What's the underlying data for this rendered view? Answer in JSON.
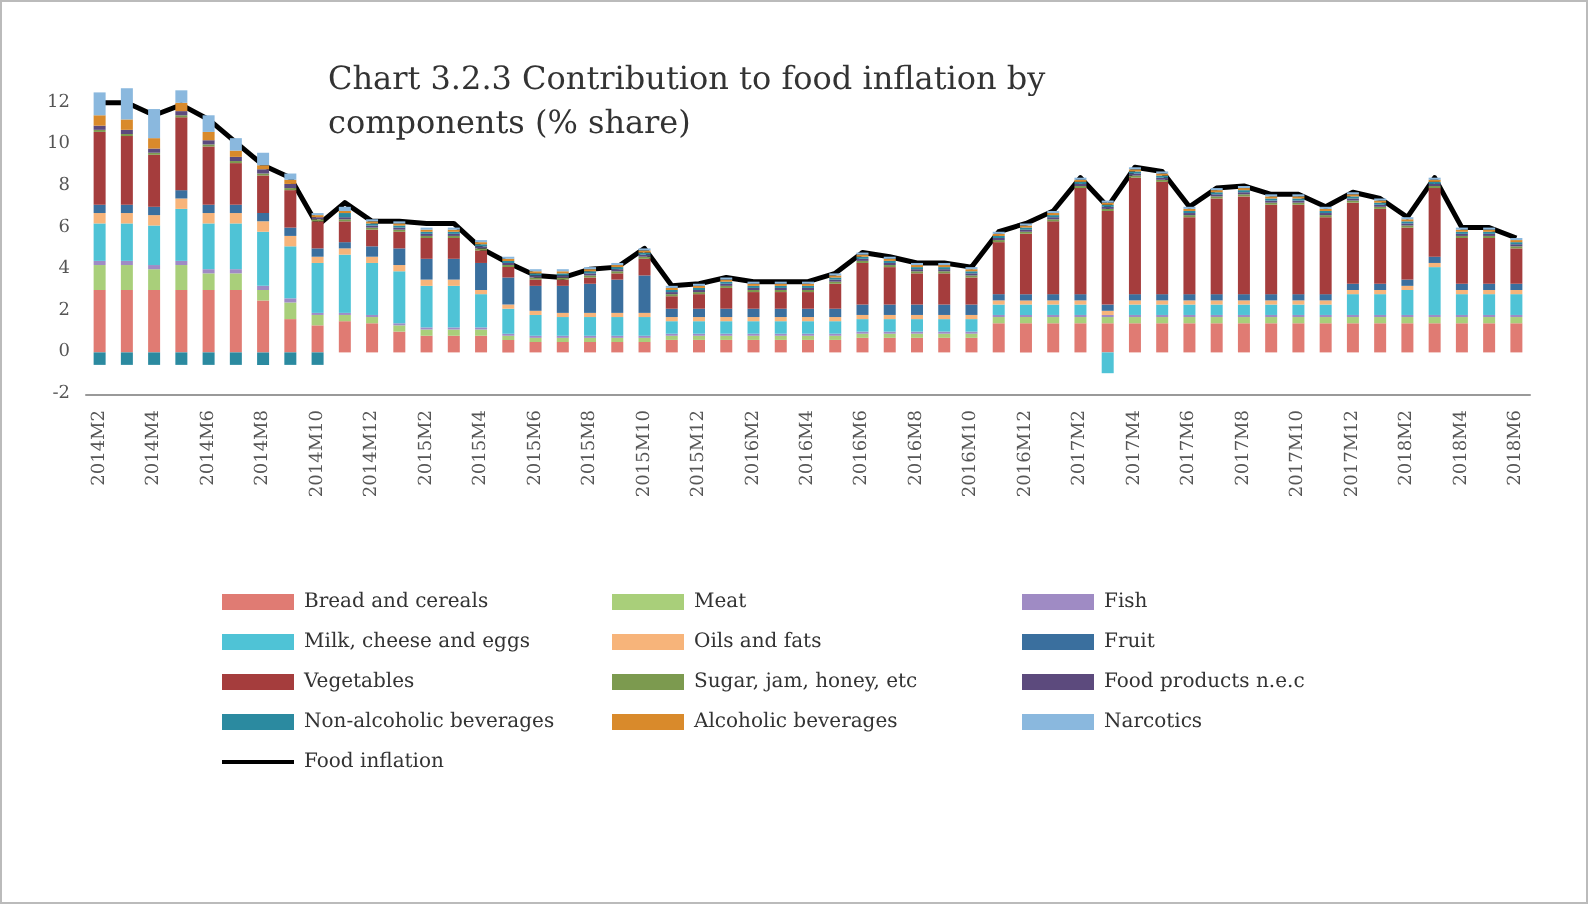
{
  "chart_data": {
    "type": "bar",
    "title": "Chart 3.2.3 Contribution to food inflation by components (% share)",
    "categories": [
      "2014M2",
      null,
      "2014M4",
      null,
      "2014M6",
      null,
      "2014M8",
      null,
      "2014M10",
      null,
      "2014M12",
      null,
      "2015M2",
      null,
      "2015M4",
      null,
      "2015M6",
      null,
      "2015M8",
      null,
      "2015M10",
      null,
      "2015M12",
      null,
      "2016M2",
      null,
      "2016M4",
      null,
      "2016M6",
      null,
      "2016M8",
      null,
      "2016M10",
      null,
      "2016M12",
      null,
      "2017M2",
      null,
      "2017M4",
      null,
      "2017M6",
      null,
      "2017M8",
      null,
      "2017M10",
      null,
      "2017M12",
      null,
      "2018M2",
      null,
      "2018M4",
      null,
      "2018M6"
    ],
    "stacked": true,
    "ylim": [
      -2,
      13
    ],
    "yticks": [
      -2,
      0,
      2,
      4,
      6,
      8,
      10,
      12
    ],
    "grid": false,
    "legend": "bottom",
    "marker": "none",
    "series": [
      {
        "name": "Bread and cereals",
        "color": "#e07b73",
        "values": [
          3.0,
          3.0,
          3.0,
          3.0,
          3.0,
          3.0,
          2.5,
          1.6,
          1.3,
          1.5,
          1.4,
          1.0,
          0.8,
          0.8,
          0.8,
          0.6,
          0.5,
          0.5,
          0.5,
          0.5,
          0.5,
          0.6,
          0.6,
          0.6,
          0.6,
          0.6,
          0.6,
          0.6,
          0.7,
          0.7,
          0.7,
          0.7,
          0.7,
          1.4,
          1.4,
          1.4,
          1.4,
          1.4,
          1.4,
          1.4,
          1.4,
          1.4,
          1.4,
          1.4,
          1.4,
          1.4,
          1.4,
          1.4,
          1.4,
          1.4,
          1.4,
          1.4,
          1.4
        ]
      },
      {
        "name": "Meat",
        "color": "#a9cf7a",
        "values": [
          1.2,
          1.2,
          1.0,
          1.2,
          0.8,
          0.8,
          0.5,
          0.8,
          0.5,
          0.3,
          0.3,
          0.3,
          0.3,
          0.3,
          0.3,
          0.2,
          0.2,
          0.2,
          0.2,
          0.2,
          0.2,
          0.2,
          0.2,
          0.2,
          0.2,
          0.2,
          0.2,
          0.2,
          0.2,
          0.2,
          0.2,
          0.2,
          0.2,
          0.3,
          0.3,
          0.3,
          0.3,
          0.3,
          0.3,
          0.3,
          0.3,
          0.3,
          0.3,
          0.3,
          0.3,
          0.3,
          0.3,
          0.3,
          0.3,
          0.3,
          0.3,
          0.3,
          0.3
        ]
      },
      {
        "name": "Fish",
        "color": "#9f8bc4",
        "values": [
          0.2,
          0.2,
          0.2,
          0.2,
          0.2,
          0.2,
          0.2,
          0.2,
          0.1,
          0.1,
          0.1,
          0.1,
          0.1,
          0.1,
          0.1,
          0.1,
          0.1,
          0.1,
          0.1,
          0.1,
          0.1,
          0.1,
          0.1,
          0.1,
          0.1,
          0.1,
          0.1,
          0.1,
          0.1,
          0.1,
          0.1,
          0.1,
          0.1,
          0.1,
          0.1,
          0.1,
          0.1,
          0.1,
          0.1,
          0.1,
          0.1,
          0.1,
          0.1,
          0.1,
          0.1,
          0.1,
          0.1,
          0.1,
          0.1,
          0.1,
          0.1,
          0.1,
          0.1
        ]
      },
      {
        "name": "Milk, cheese and eggs",
        "color": "#4fc3d6",
        "values": [
          1.8,
          1.8,
          1.9,
          2.5,
          2.2,
          2.2,
          2.6,
          2.5,
          2.4,
          2.8,
          2.5,
          2.5,
          2.0,
          2.0,
          1.6,
          1.2,
          1.0,
          0.9,
          0.9,
          0.9,
          0.9,
          0.6,
          0.6,
          0.6,
          0.6,
          0.6,
          0.6,
          0.6,
          0.6,
          0.6,
          0.6,
          0.6,
          0.6,
          0.5,
          0.5,
          0.5,
          0.5,
          -1.0,
          0.5,
          0.5,
          0.5,
          0.5,
          0.5,
          0.5,
          0.5,
          0.5,
          1.0,
          1.0,
          1.2,
          2.3,
          1.0,
          1.0,
          1.0
        ]
      },
      {
        "name": "Oils and fats",
        "color": "#f7b47a",
        "values": [
          0.5,
          0.5,
          0.5,
          0.5,
          0.5,
          0.5,
          0.5,
          0.5,
          0.3,
          0.3,
          0.3,
          0.3,
          0.3,
          0.3,
          0.2,
          0.2,
          0.2,
          0.2,
          0.2,
          0.2,
          0.2,
          0.2,
          0.2,
          0.2,
          0.2,
          0.2,
          0.2,
          0.2,
          0.2,
          0.2,
          0.2,
          0.2,
          0.2,
          0.2,
          0.2,
          0.2,
          0.2,
          0.2,
          0.2,
          0.2,
          0.2,
          0.2,
          0.2,
          0.2,
          0.2,
          0.2,
          0.2,
          0.2,
          0.2,
          0.2,
          0.2,
          0.2,
          0.2
        ]
      },
      {
        "name": "Fruit",
        "color": "#3a6f9e",
        "values": [
          0.4,
          0.4,
          0.4,
          0.4,
          0.4,
          0.4,
          0.4,
          0.4,
          0.4,
          0.3,
          0.5,
          0.8,
          1.0,
          1.0,
          1.3,
          1.3,
          1.2,
          1.3,
          1.4,
          1.6,
          1.8,
          0.4,
          0.4,
          0.4,
          0.4,
          0.4,
          0.4,
          0.4,
          0.5,
          0.5,
          0.5,
          0.5,
          0.5,
          0.3,
          0.3,
          0.3,
          0.3,
          0.3,
          0.3,
          0.3,
          0.3,
          0.3,
          0.3,
          0.3,
          0.3,
          0.3,
          0.3,
          0.3,
          0.3,
          0.3,
          0.3,
          0.3,
          0.3
        ]
      },
      {
        "name": "Vegetables",
        "color": "#a53d3d",
        "values": [
          3.5,
          3.3,
          2.5,
          3.5,
          2.8,
          2.0,
          1.8,
          1.8,
          1.3,
          1.0,
          0.8,
          0.8,
          1.0,
          1.0,
          0.6,
          0.5,
          0.3,
          0.3,
          0.3,
          0.3,
          0.8,
          0.6,
          0.7,
          1.0,
          0.8,
          0.8,
          0.8,
          1.2,
          2.0,
          1.8,
          1.5,
          1.5,
          1.3,
          2.5,
          2.9,
          3.5,
          5.1,
          4.5,
          5.6,
          5.4,
          3.7,
          4.6,
          4.7,
          4.3,
          4.3,
          3.7,
          3.9,
          3.6,
          2.5,
          3.3,
          2.2,
          2.2,
          1.7
        ]
      },
      {
        "name": "Sugar, jam, honey, etc",
        "color": "#7c9a4f",
        "values": [
          0.1,
          0.1,
          0.1,
          0.1,
          0.1,
          0.1,
          0.1,
          0.1,
          0.1,
          0.1,
          0.1,
          0.1,
          0.1,
          0.1,
          0.1,
          0.1,
          0.1,
          0.1,
          0.1,
          0.1,
          0.1,
          0.1,
          0.1,
          0.1,
          0.1,
          0.1,
          0.1,
          0.1,
          0.1,
          0.1,
          0.1,
          0.1,
          0.1,
          0.1,
          0.1,
          0.1,
          0.1,
          0.1,
          0.1,
          0.1,
          0.1,
          0.1,
          0.1,
          0.1,
          0.1,
          0.1,
          0.1,
          0.1,
          0.1,
          0.1,
          0.1,
          0.1,
          0.1
        ]
      },
      {
        "name": "Food products n.e.c",
        "color": "#5c4a7d",
        "values": [
          0.2,
          0.2,
          0.2,
          0.2,
          0.2,
          0.2,
          0.2,
          0.2,
          0.1,
          0.1,
          0.1,
          0.1,
          0.1,
          0.1,
          0.1,
          0.1,
          0.1,
          0.1,
          0.1,
          0.1,
          0.1,
          0.1,
          0.1,
          0.1,
          0.1,
          0.1,
          0.1,
          0.1,
          0.1,
          0.1,
          0.1,
          0.1,
          0.1,
          0.1,
          0.1,
          0.1,
          0.1,
          0.1,
          0.1,
          0.1,
          0.1,
          0.1,
          0.1,
          0.1,
          0.1,
          0.1,
          0.1,
          0.1,
          0.1,
          0.1,
          0.1,
          0.1,
          0.1
        ]
      },
      {
        "name": "Non-alcoholic beverages",
        "color": "#2b8aa0",
        "values": [
          -0.6,
          -0.6,
          -0.6,
          -0.6,
          -0.6,
          -0.6,
          -0.6,
          -0.6,
          -0.6,
          0.2,
          0.1,
          0.1,
          0.1,
          0.1,
          0.1,
          0.1,
          0.1,
          0.1,
          0.1,
          0.1,
          0.1,
          0.1,
          0.1,
          0.1,
          0.1,
          0.1,
          0.1,
          0.1,
          0.1,
          0.1,
          0.1,
          0.1,
          0.1,
          0.1,
          0.1,
          0.1,
          0.1,
          0.1,
          0.1,
          0.1,
          0.1,
          0.1,
          0.1,
          0.1,
          0.1,
          0.1,
          0.1,
          0.1,
          0.1,
          0.1,
          0.1,
          0.1,
          0.1
        ]
      },
      {
        "name": "Alcoholic beverages",
        "color": "#d98a2b",
        "values": [
          0.5,
          0.5,
          0.5,
          0.4,
          0.4,
          0.3,
          0.2,
          0.2,
          0.1,
          0.1,
          0.1,
          0.1,
          0.1,
          0.1,
          0.1,
          0.1,
          0.1,
          0.1,
          0.1,
          0.1,
          0.1,
          0.1,
          0.1,
          0.1,
          0.1,
          0.1,
          0.1,
          0.1,
          0.1,
          0.1,
          0.1,
          0.1,
          0.1,
          0.1,
          0.1,
          0.1,
          0.1,
          0.1,
          0.1,
          0.1,
          0.1,
          0.1,
          0.1,
          0.1,
          0.1,
          0.1,
          0.1,
          0.1,
          0.1,
          0.1,
          0.1,
          0.1,
          0.1
        ]
      },
      {
        "name": "Narcotics",
        "color": "#8ab8de",
        "values": [
          1.1,
          1.5,
          1.4,
          0.6,
          0.8,
          0.6,
          0.6,
          0.3,
          0.1,
          0.2,
          0.1,
          0.1,
          0.1,
          0.1,
          0.1,
          0.1,
          0.1,
          0.1,
          0.1,
          0.1,
          0.1,
          0.1,
          0.1,
          0.1,
          0.1,
          0.1,
          0.1,
          0.1,
          0.1,
          0.1,
          0.1,
          0.1,
          0.1,
          0.1,
          0.1,
          0.1,
          0.1,
          0.1,
          0.1,
          0.1,
          0.1,
          0.1,
          0.1,
          0.1,
          0.1,
          0.1,
          0.1,
          0.1,
          0.1,
          0.1,
          0.1,
          0.1,
          0.1
        ]
      },
      {
        "name": "Food inflation",
        "type": "line",
        "color": "#000000",
        "values": [
          12.0,
          12.0,
          11.4,
          11.9,
          11.2,
          10.1,
          9.0,
          8.4,
          6.1,
          7.2,
          6.3,
          6.3,
          6.2,
          6.2,
          5.0,
          4.3,
          3.7,
          3.6,
          4.0,
          4.1,
          5.0,
          3.2,
          3.3,
          3.6,
          3.4,
          3.4,
          3.4,
          3.8,
          4.8,
          4.6,
          4.3,
          4.3,
          4.1,
          5.8,
          6.2,
          6.8,
          8.4,
          7.0,
          8.9,
          8.7,
          7.0,
          7.9,
          8.0,
          7.6,
          7.6,
          7.0,
          7.7,
          7.4,
          6.5,
          8.4,
          6.0,
          6.0,
          5.5
        ]
      }
    ]
  }
}
